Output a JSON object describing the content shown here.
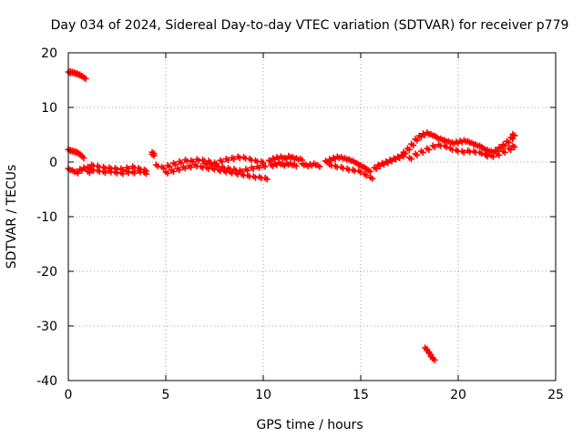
{
  "chart_data": {
    "type": "scatter",
    "title": "Day 034 of 2024, Sidereal Day-to-day VTEC variation (SDTVAR) for receiver p779",
    "xlabel": "GPS time / hours",
    "ylabel": "SDTVAR / TECUs",
    "xlim": [
      0,
      25
    ],
    "ylim": [
      -40,
      20
    ],
    "xticks": [
      0,
      5,
      10,
      15,
      20,
      25
    ],
    "yticks": [
      -40,
      -30,
      -20,
      -10,
      0,
      10,
      20
    ],
    "xtick_labels": [
      "0",
      "5",
      "10",
      "15",
      "20",
      "25"
    ],
    "ytick_labels": [
      "-40",
      "-30",
      "-20",
      "-10",
      "0",
      "10",
      "20"
    ],
    "grid": true,
    "marker": "+",
    "series": [
      {
        "name": "SDTVAR",
        "color": "#ff0000",
        "x": [
          0.0,
          0.1,
          0.2,
          0.3,
          0.4,
          0.5,
          0.6,
          0.7,
          0.8,
          0.0,
          0.1,
          0.2,
          0.3,
          0.4,
          0.5,
          0.6,
          0.7,
          0.0,
          0.2,
          0.4,
          0.6,
          0.8,
          1.0,
          1.0,
          1.2,
          1.5,
          1.8,
          2.1,
          2.4,
          2.7,
          3.0,
          3.3,
          3.6,
          3.9,
          1.2,
          1.5,
          1.8,
          2.1,
          2.4,
          2.7,
          3.0,
          3.3,
          3.6,
          3.9,
          4.3,
          4.3,
          4.5,
          4.8,
          5.1,
          5.4,
          5.7,
          6.0,
          6.3,
          6.6,
          6.9,
          7.2,
          7.5,
          7.8,
          8.1,
          8.4,
          8.7,
          9.0,
          9.3,
          9.6,
          9.9,
          5.0,
          5.3,
          5.6,
          5.9,
          6.2,
          6.5,
          6.8,
          7.1,
          7.4,
          7.7,
          8.0,
          8.3,
          8.6,
          8.9,
          9.2,
          9.5,
          9.8,
          10.1,
          7.0,
          7.3,
          7.6,
          7.9,
          8.2,
          8.5,
          8.8,
          9.1,
          9.4,
          9.7,
          10.0,
          10.3,
          10.5,
          10.7,
          10.9,
          11.1,
          11.3,
          11.5,
          11.7,
          11.9,
          10.4,
          10.6,
          10.8,
          11.0,
          11.2,
          11.4,
          11.6,
          12.0,
          12.2,
          12.4,
          12.6,
          12.8,
          13.2,
          13.4,
          13.6,
          13.8,
          14.0,
          14.2,
          14.4,
          14.6,
          14.8,
          15.0,
          15.2,
          15.4,
          13.4,
          13.7,
          14.0,
          14.3,
          14.6,
          14.9,
          15.2,
          15.5,
          15.7,
          15.9,
          16.1,
          16.3,
          16.5,
          16.7,
          16.9,
          17.1,
          17.2,
          17.4,
          17.6,
          17.8,
          18.0,
          18.2,
          18.4,
          18.6,
          18.8,
          17.5,
          17.8,
          18.1,
          18.4,
          18.7,
          18.9,
          19.1,
          19.3,
          19.5,
          19.7,
          19.9,
          20.1,
          20.3,
          20.5,
          20.7,
          20.9,
          21.1,
          19.0,
          19.3,
          19.6,
          19.9,
          20.2,
          20.5,
          20.8,
          21.1,
          21.4,
          21.3,
          21.5,
          21.7,
          21.9,
          22.1,
          22.3,
          22.5,
          22.7,
          22.8,
          21.4,
          21.7,
          22.0,
          22.3,
          22.6,
          22.8,
          18.3,
          18.4,
          18.5,
          18.6,
          18.7
        ],
        "y": [
          16.5,
          16.6,
          16.5,
          16.4,
          16.3,
          16.1,
          16.0,
          15.7,
          15.5,
          2.3,
          2.2,
          2.1,
          2.0,
          1.9,
          1.7,
          1.4,
          1.0,
          -1.2,
          -1.5,
          -1.8,
          -1.3,
          -1.0,
          -0.9,
          -1.7,
          -0.5,
          -0.7,
          -0.9,
          -1.0,
          -1.1,
          -1.2,
          -1.0,
          -0.8,
          -1.1,
          -1.4,
          -1.3,
          -1.5,
          -1.7,
          -1.6,
          -1.8,
          -1.9,
          -1.7,
          -1.8,
          -1.6,
          -1.9,
          1.8,
          1.4,
          -0.5,
          -0.9,
          -0.6,
          -0.2,
          0.1,
          0.4,
          0.3,
          0.5,
          0.4,
          0.2,
          -0.1,
          0.3,
          0.6,
          0.8,
          1.0,
          0.9,
          0.6,
          0.3,
          0.1,
          -1.8,
          -1.5,
          -1.2,
          -0.9,
          -0.7,
          -0.5,
          -0.8,
          -1.0,
          -1.1,
          -1.4,
          -1.6,
          -1.8,
          -2.0,
          -2.2,
          -2.4,
          -2.6,
          -2.7,
          -2.9,
          -0.2,
          -0.4,
          -0.6,
          -0.9,
          -1.1,
          -1.3,
          -1.5,
          -1.3,
          -1.0,
          -0.8,
          -0.6,
          0.3,
          0.7,
          0.9,
          1.0,
          0.8,
          1.1,
          0.9,
          0.7,
          0.6,
          -0.5,
          -0.3,
          -0.1,
          -0.4,
          -0.2,
          -0.3,
          -0.5,
          -0.3,
          -0.5,
          -0.4,
          -0.3,
          -0.6,
          0.2,
          0.5,
          0.8,
          1.0,
          0.9,
          0.7,
          0.5,
          0.2,
          -0.2,
          -0.6,
          -1.0,
          -1.5,
          -0.4,
          -0.7,
          -0.9,
          -1.2,
          -1.4,
          -1.6,
          -2.2,
          -2.8,
          -1.0,
          -0.5,
          -0.2,
          0.1,
          0.4,
          0.7,
          1.0,
          1.3,
          1.8,
          2.5,
          3.3,
          4.2,
          4.8,
          5.2,
          5.4,
          5.1,
          4.8,
          0.8,
          1.5,
          2.0,
          2.5,
          3.0,
          4.5,
          4.3,
          4.0,
          3.8,
          3.6,
          3.7,
          3.9,
          4.0,
          3.8,
          3.5,
          3.2,
          3.0,
          3.2,
          3.0,
          2.5,
          2.2,
          2.0,
          2.1,
          2.0,
          1.8,
          1.6,
          2.5,
          2.2,
          2.0,
          2.2,
          2.7,
          3.2,
          3.8,
          4.5,
          5.1,
          1.3,
          1.2,
          1.5,
          2.0,
          2.5,
          3.0,
          -34.0,
          -34.5,
          -35.0,
          -35.6,
          -36.0
        ]
      }
    ]
  }
}
